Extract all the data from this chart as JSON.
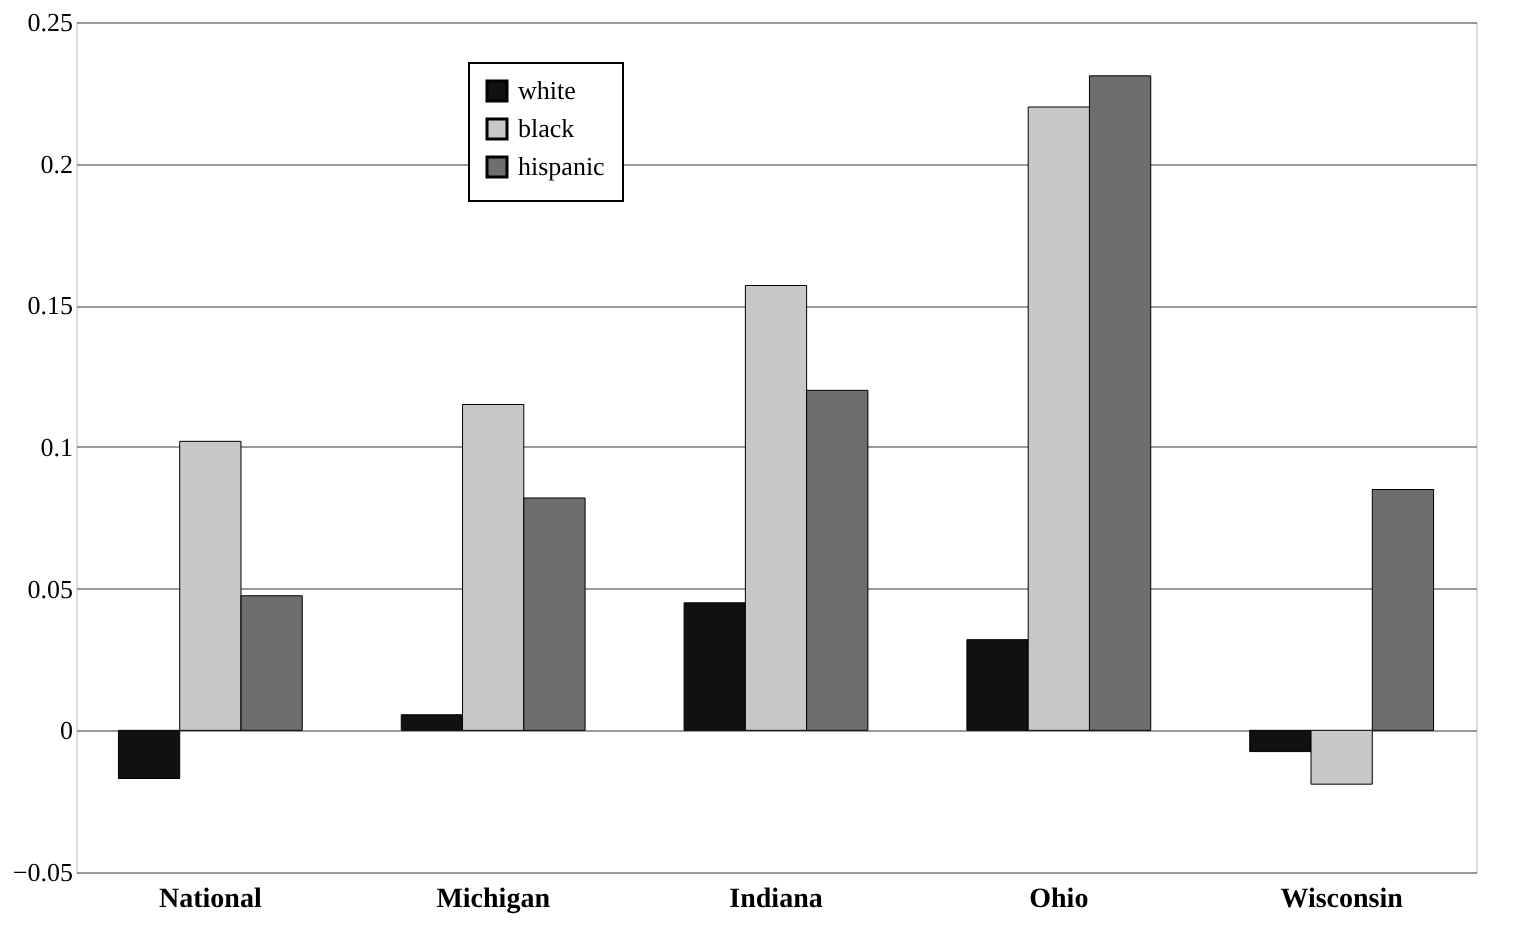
{
  "chart_data": {
    "type": "bar",
    "categories": [
      "National",
      "Michigan",
      "Indiana",
      "Ohio",
      "Wisconsin"
    ],
    "series": [
      {
        "name": "white",
        "color": "#111111",
        "values": [
          -0.017,
          0.0055,
          0.045,
          0.032,
          -0.0075
        ]
      },
      {
        "name": "black",
        "color": "#c8c8c8",
        "values": [
          0.102,
          0.115,
          0.157,
          0.22,
          -0.019
        ]
      },
      {
        "name": "hispanic",
        "color": "#6e6e6e",
        "values": [
          0.0475,
          0.082,
          0.12,
          0.231,
          0.085
        ]
      }
    ],
    "ylim": [
      -0.05,
      0.25
    ],
    "yticks": [
      -0.05,
      0,
      0.05,
      0.1,
      0.15,
      0.2,
      0.25
    ],
    "grid": "y",
    "legend": "top left"
  }
}
